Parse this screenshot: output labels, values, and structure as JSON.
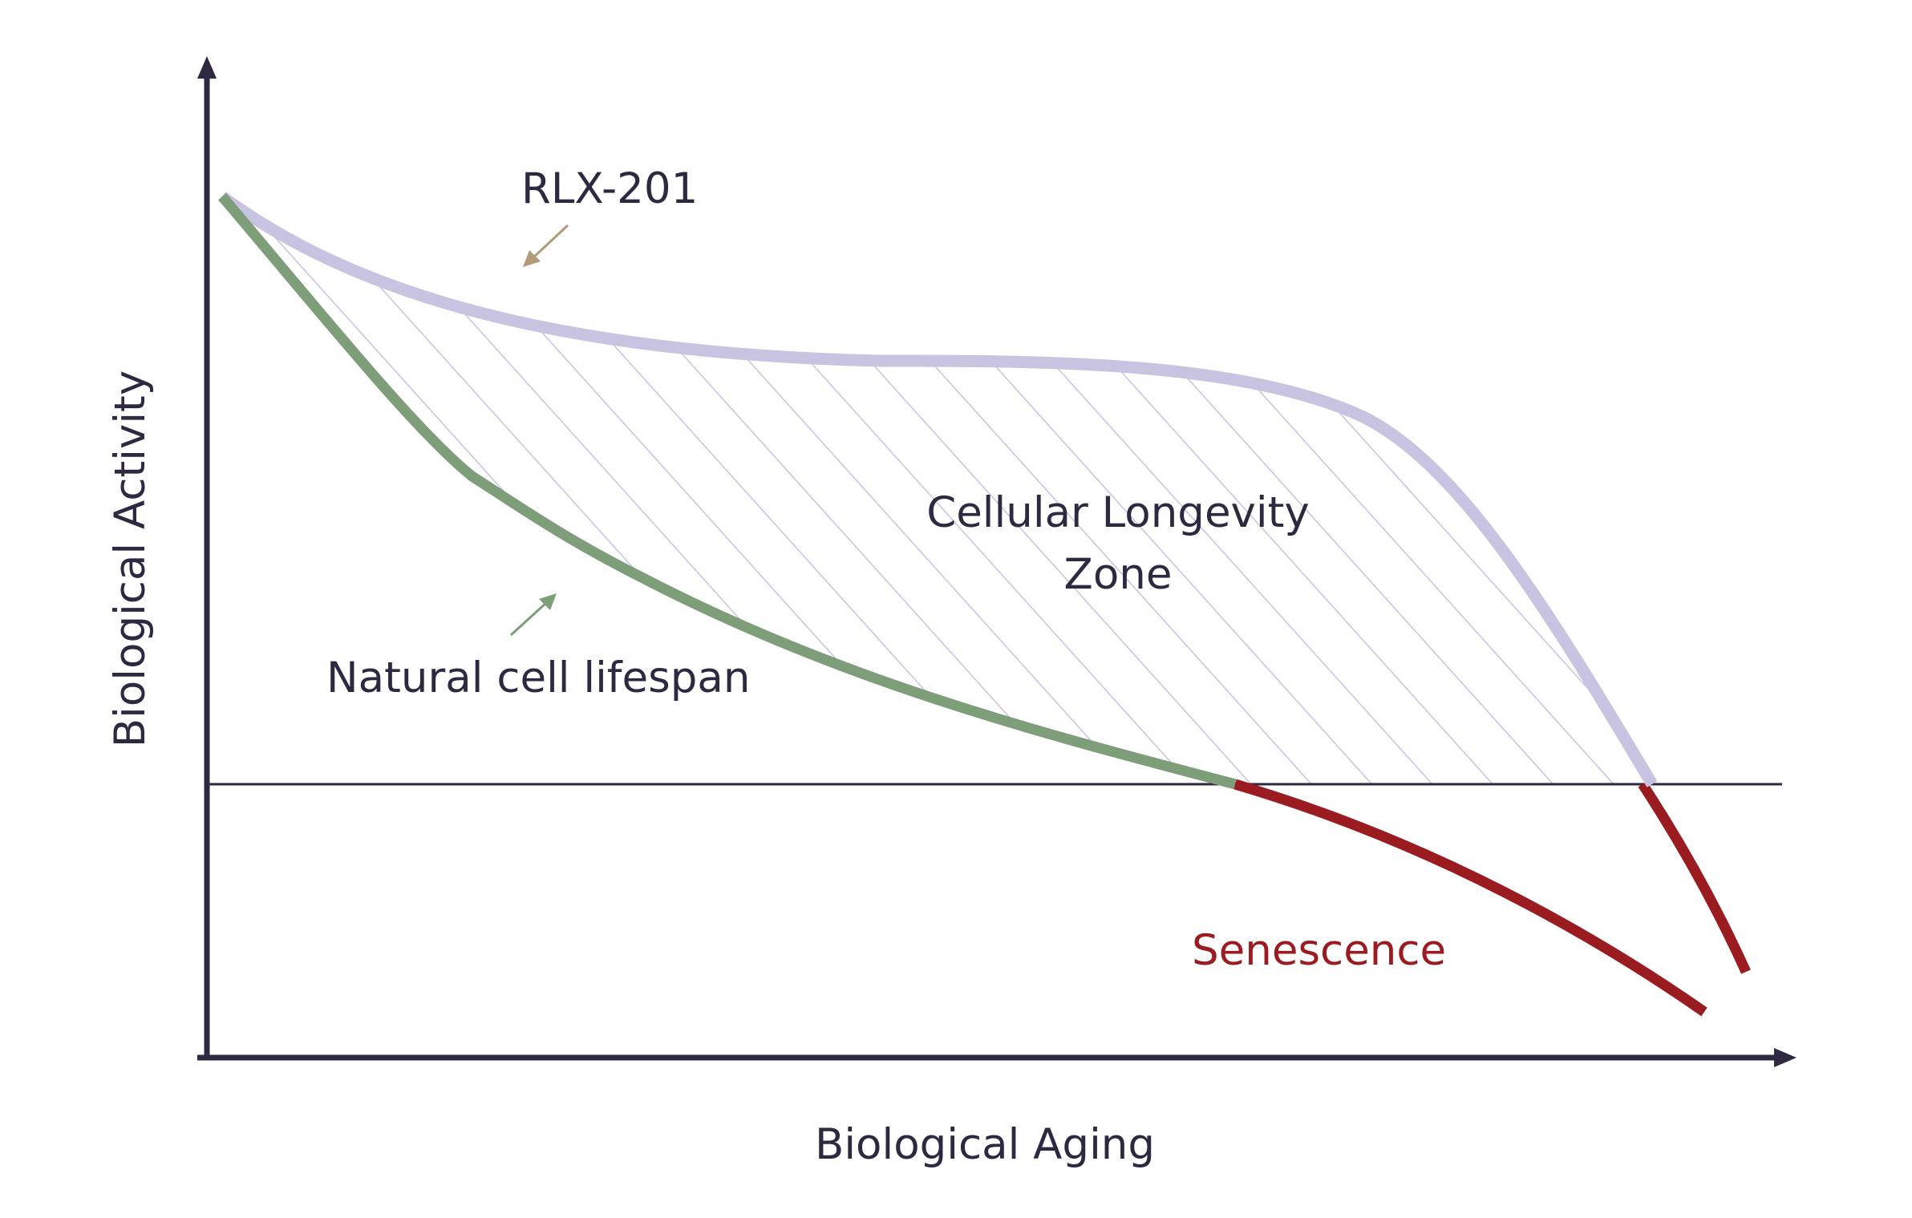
{
  "labels": {
    "top_curve": "RLX-201",
    "bottom_curve": "Natural cell lifespan",
    "zone_line1": "Cellular Longevity",
    "zone_line2": "Zone",
    "senescence": "Senescence",
    "x_axis": "Biological Aging",
    "y_axis": "Biological Activity"
  },
  "colors": {
    "axis": "#2e2840",
    "rlx_curve": "#c8c3e0",
    "natural_curve": "#7d9e79",
    "senescence_curve": "#9b1c20",
    "hatch": "#c8c3e0",
    "rlx_arrow": "#b09a7a",
    "natural_arrow": "#7d9e79"
  }
}
